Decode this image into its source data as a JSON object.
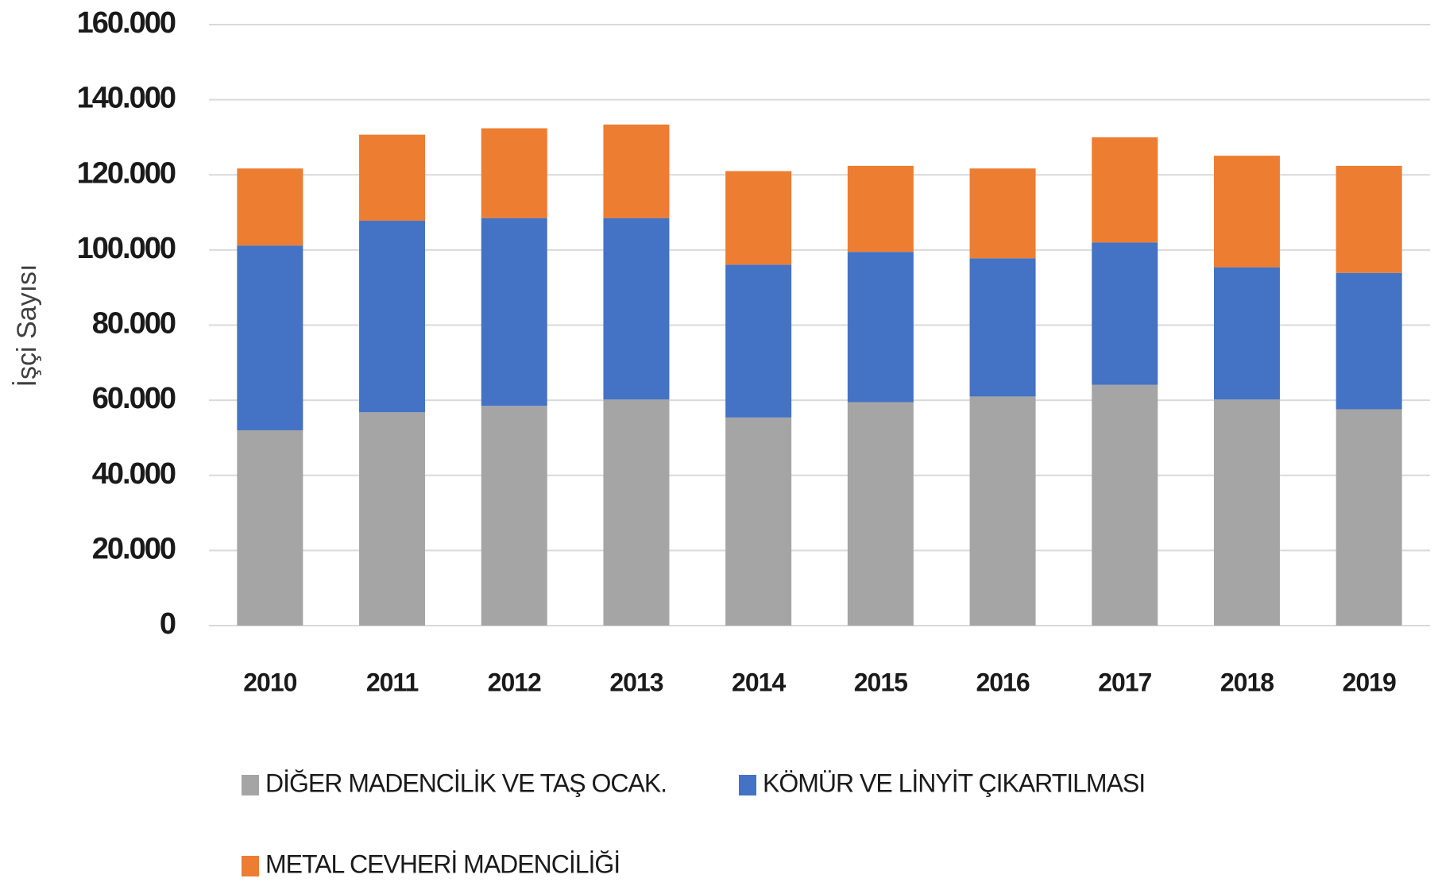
{
  "chart_data": {
    "type": "stacked_bar",
    "y_axis_label": "İşçi Sayısı",
    "categories": [
      "2010",
      "2011",
      "2012",
      "2013",
      "2014",
      "2015",
      "2016",
      "2017",
      "2018",
      "2019"
    ],
    "series": [
      {
        "name": "DİĞER MADENCİLİK VE TAŞ OCAK.",
        "color": "#a5a5a5",
        "values": [
          52000,
          56800,
          58500,
          60200,
          55400,
          59500,
          61000,
          64100,
          60200,
          57600
        ]
      },
      {
        "name": "KÖMÜR VE LİNYİT ÇIKARTILMASI",
        "color": "#4472c4",
        "values": [
          49200,
          51000,
          50000,
          48300,
          40700,
          40000,
          36800,
          37900,
          35200,
          36300
        ]
      },
      {
        "name": "METAL CEVHERİ MADENCİLİĞİ",
        "color": "#ed7d31",
        "values": [
          20500,
          22900,
          23900,
          24900,
          24900,
          22900,
          23900,
          28000,
          29700,
          28500
        ]
      }
    ],
    "ylim": [
      0,
      160000
    ],
    "yticks": [
      0,
      {
        "value": 20000,
        "label": "20.000"
      },
      {
        "value": 40000,
        "label": "40.000"
      },
      {
        "value": 60000,
        "label": "60.000"
      },
      {
        "value": 80000,
        "label": "80.000"
      },
      {
        "value": 100000,
        "label": "100.000"
      },
      {
        "value": 120000,
        "label": "120.000"
      },
      {
        "value": 140000,
        "label": "140.000"
      },
      {
        "value": 160000,
        "label": "160.000"
      }
    ],
    "grid": true
  }
}
